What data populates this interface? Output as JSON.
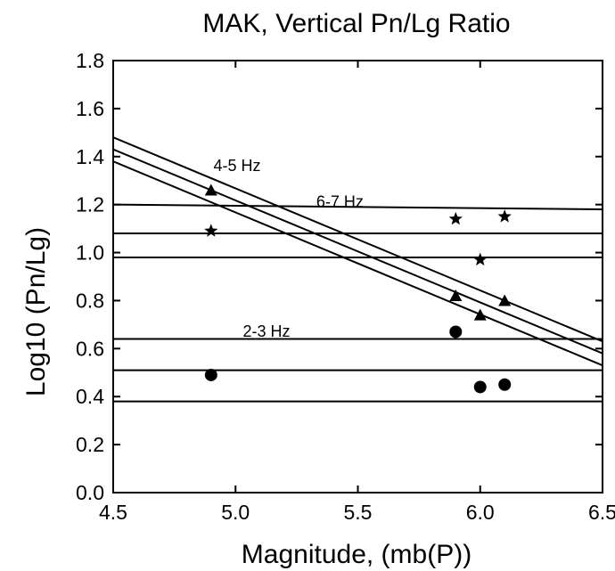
{
  "chart_data": {
    "type": "scatter",
    "title": "MAK, Vertical Pn/Lg Ratio",
    "xlabel": "Magnitude, (mb(P))",
    "ylabel": "Log10 (Pn/Lg)",
    "xlim": [
      4.5,
      6.5
    ],
    "ylim": [
      0.0,
      1.8
    ],
    "xticks": [
      "4.5",
      "5.0",
      "5.5",
      "6.0",
      "6.5"
    ],
    "yticks": [
      "0.0",
      "0.2",
      "0.4",
      "0.6",
      "0.8",
      "1.0",
      "1.2",
      "1.4",
      "1.6",
      "1.8"
    ],
    "grid": false,
    "series": [
      {
        "label": "2-3 Hz",
        "marker": "circle",
        "points": [
          [
            4.9,
            0.49
          ],
          [
            5.9,
            0.67
          ],
          [
            6.0,
            0.44
          ],
          [
            6.1,
            0.45
          ]
        ],
        "band_lines": [
          [
            [
              4.5,
              0.64
            ],
            [
              6.5,
              0.64
            ]
          ],
          [
            [
              4.5,
              0.51
            ],
            [
              6.5,
              0.51
            ]
          ],
          [
            [
              4.5,
              0.38
            ],
            [
              6.5,
              0.38
            ]
          ]
        ]
      },
      {
        "label": "4-5 Hz",
        "marker": "triangle",
        "points": [
          [
            4.9,
            1.26
          ],
          [
            5.9,
            0.82
          ],
          [
            6.0,
            0.74
          ],
          [
            6.1,
            0.8
          ]
        ],
        "band_lines": [
          [
            [
              4.5,
              1.48
            ],
            [
              6.5,
              0.63
            ]
          ],
          [
            [
              4.5,
              1.43
            ],
            [
              6.5,
              0.58
            ]
          ],
          [
            [
              4.5,
              1.38
            ],
            [
              6.5,
              0.53
            ]
          ]
        ]
      },
      {
        "label": "6-7 Hz",
        "marker": "star",
        "points": [
          [
            4.9,
            1.09
          ],
          [
            5.9,
            1.14
          ],
          [
            6.0,
            0.97
          ],
          [
            6.1,
            1.15
          ]
        ],
        "band_lines": [
          [
            [
              4.5,
              1.2
            ],
            [
              6.5,
              1.18
            ]
          ],
          [
            [
              4.5,
              1.08
            ],
            [
              6.5,
              1.08
            ]
          ],
          [
            [
              4.5,
              0.98
            ],
            [
              6.5,
              0.98
            ]
          ]
        ]
      }
    ],
    "annotations": [
      {
        "text": "4-5 Hz",
        "x": 4.91,
        "y": 1.34
      },
      {
        "text": "6-7 Hz",
        "x": 5.33,
        "y": 1.19
      },
      {
        "text": "2-3 Hz",
        "x": 5.03,
        "y": 0.65
      }
    ]
  }
}
